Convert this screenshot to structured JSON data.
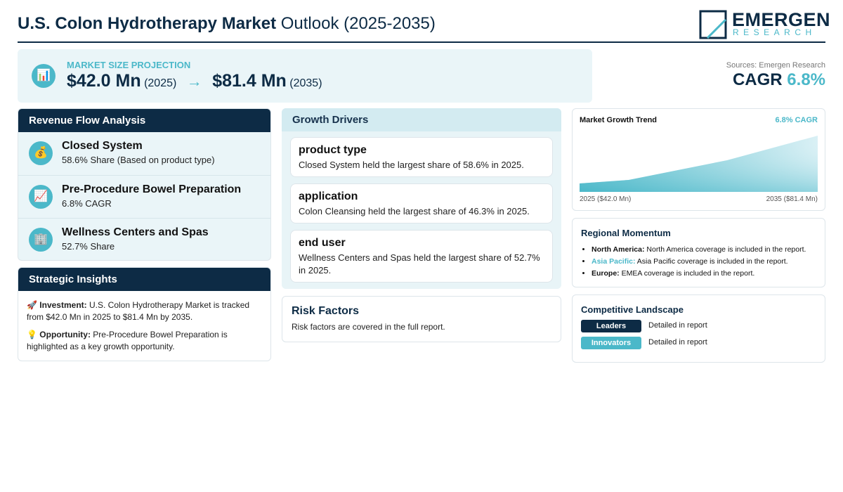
{
  "header": {
    "title_bold": "U.S. Colon Hydrotherapy Market",
    "title_rest": "Outlook (2025-2035)",
    "logo_main": "EMERGEN",
    "logo_sub": "RESEARCH"
  },
  "projection": {
    "icon": "📊",
    "label": "MARKET SIZE PROJECTION",
    "start_value": "$42.0 Mn",
    "start_year": "(2025)",
    "arrow": "→",
    "end_value": "$81.4 Mn",
    "end_year": "(2035)"
  },
  "sources": "Sources: Emergen Research",
  "cagr": {
    "label": "CAGR",
    "value": "6.8%"
  },
  "revenue_flow": {
    "title": "Revenue Flow Analysis",
    "items": [
      {
        "icon": "💰",
        "title": "Closed System",
        "subtitle": "58.6% Share (Based on product type)"
      },
      {
        "icon": "📈",
        "title": "Pre-Procedure Bowel Preparation",
        "subtitle": "6.8% CAGR"
      },
      {
        "icon": "🏢",
        "title": "Wellness Centers and Spas",
        "subtitle": "52.7% Share"
      }
    ]
  },
  "strategic_insights": {
    "title": "Strategic Insights",
    "items": [
      {
        "icon": "🚀",
        "label": "Investment:",
        "text": "U.S. Colon Hydrotherapy Market is tracked from $42.0 Mn in 2025 to $81.4 Mn by 2035."
      },
      {
        "icon": "💡",
        "label": "Opportunity:",
        "text": "Pre-Procedure Bowel Preparation is highlighted as a key growth opportunity."
      }
    ]
  },
  "growth_drivers": {
    "title": "Growth Drivers",
    "items": [
      {
        "title": "product type",
        "text": "Closed System held the largest share of 58.6% in 2025."
      },
      {
        "title": "application",
        "text": "Colon Cleansing held the largest share of 46.3% in 2025."
      },
      {
        "title": "end user",
        "text": "Wellness Centers and Spas held the largest share of 52.7% in 2025."
      }
    ]
  },
  "risk_factors": {
    "title": "Risk Factors",
    "text": "Risk factors are covered in the full report."
  },
  "trend": {
    "title": "Market Growth Trend",
    "badge": "6.8% CAGR",
    "start_label": "2025 ($42.0 Mn)",
    "end_label": "2035 ($81.4 Mn)"
  },
  "regional": {
    "title": "Regional Momentum",
    "items": [
      {
        "region": "North America:",
        "text": "North America coverage is included in the report."
      },
      {
        "region": "Asia Pacific:",
        "text": "Asia Pacific coverage is included in the report."
      },
      {
        "region": "Europe:",
        "text": "EMEA coverage is included in the report."
      }
    ]
  },
  "competitive": {
    "title": "Competitive Landscape",
    "rows": [
      {
        "badge": "Leaders",
        "text": "Detailed in report"
      },
      {
        "badge": "Innovators",
        "text": "Detailed in report"
      }
    ]
  }
}
